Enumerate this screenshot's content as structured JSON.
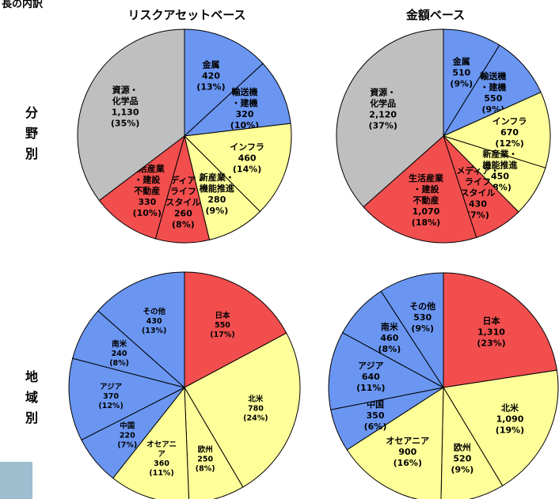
{
  "corner_label": "長の内訳",
  "columns": [
    "リスクアセットベース",
    "金額ベース"
  ],
  "rows": [
    {
      "chars": [
        "分",
        "野",
        "別"
      ]
    },
    {
      "chars": [
        "地",
        "域",
        "別"
      ]
    }
  ],
  "colors": {
    "red": "#f24e4e",
    "blue": "#6a96f2",
    "yellow": "#ffff9a",
    "gray": "#bfbfbf"
  },
  "chart_data": [
    {
      "type": "pie",
      "title": "リスクアセットベース",
      "group": "分野別",
      "slices": [
        {
          "label": "金属",
          "value": 420,
          "pct": "13%",
          "color": "blue"
        },
        {
          "label": "輸送機・建機",
          "value": 320,
          "pct": "10%",
          "color": "blue"
        },
        {
          "label": "インフラ",
          "value": 460,
          "pct": "14%",
          "color": "yellow"
        },
        {
          "label": "新産業・機能推進",
          "value": 280,
          "pct": "9%",
          "color": "yellow"
        },
        {
          "label": "メディア・ライフスタイル",
          "value": 260,
          "pct": "8%",
          "color": "red"
        },
        {
          "label": "生活産業・建設不動産",
          "value": 330,
          "pct": "10%",
          "color": "red"
        },
        {
          "label": "資源・化学品",
          "value": 1130,
          "pct": "35%",
          "color": "gray"
        }
      ]
    },
    {
      "type": "pie",
      "title": "金額ベース",
      "group": "分野別",
      "slices": [
        {
          "label": "金属",
          "value": 510,
          "pct": "9%",
          "color": "blue"
        },
        {
          "label": "輸送機・建機",
          "value": 550,
          "pct": "9%",
          "color": "blue"
        },
        {
          "label": "インフラ",
          "value": 670,
          "pct": "12%",
          "color": "yellow"
        },
        {
          "label": "新産業・機能推進",
          "value": 450,
          "pct": "8%",
          "color": "yellow"
        },
        {
          "label": "メディア・ライフスタイル",
          "value": 430,
          "pct": "7%",
          "color": "red"
        },
        {
          "label": "生活産業・建設不動産",
          "value": 1070,
          "pct": "18%",
          "color": "red"
        },
        {
          "label": "資源・化学品",
          "value": 2120,
          "pct": "37%",
          "color": "gray"
        }
      ]
    },
    {
      "type": "pie",
      "title": "リスクアセットベース",
      "group": "地域別",
      "slices": [
        {
          "label": "日本",
          "value": 550,
          "pct": "17%",
          "color": "red"
        },
        {
          "label": "北米",
          "value": 780,
          "pct": "24%",
          "color": "yellow"
        },
        {
          "label": "欧州",
          "value": 250,
          "pct": "8%",
          "color": "yellow"
        },
        {
          "label": "オセアニア",
          "value": 360,
          "pct": "11%",
          "color": "yellow"
        },
        {
          "label": "中国",
          "value": 220,
          "pct": "7%",
          "color": "blue"
        },
        {
          "label": "アジア",
          "value": 370,
          "pct": "12%",
          "color": "blue"
        },
        {
          "label": "南米",
          "value": 240,
          "pct": "8%",
          "color": "blue"
        },
        {
          "label": "その他",
          "value": 430,
          "pct": "13%",
          "color": "blue"
        }
      ]
    },
    {
      "type": "pie",
      "title": "金額ベース",
      "group": "地域別",
      "slices": [
        {
          "label": "日本",
          "value": 1310,
          "pct": "23%",
          "color": "red"
        },
        {
          "label": "北米",
          "value": 1090,
          "pct": "19%",
          "color": "yellow"
        },
        {
          "label": "欧州",
          "value": 520,
          "pct": "9%",
          "color": "yellow"
        },
        {
          "label": "オセアニア",
          "value": 900,
          "pct": "16%",
          "color": "yellow"
        },
        {
          "label": "中国",
          "value": 350,
          "pct": "6%",
          "color": "blue"
        },
        {
          "label": "アジア",
          "value": 640,
          "pct": "11%",
          "color": "blue"
        },
        {
          "label": "南米",
          "value": 460,
          "pct": "8%",
          "color": "blue"
        },
        {
          "label": "その他",
          "value": 530,
          "pct": "9%",
          "color": "blue"
        }
      ]
    }
  ]
}
